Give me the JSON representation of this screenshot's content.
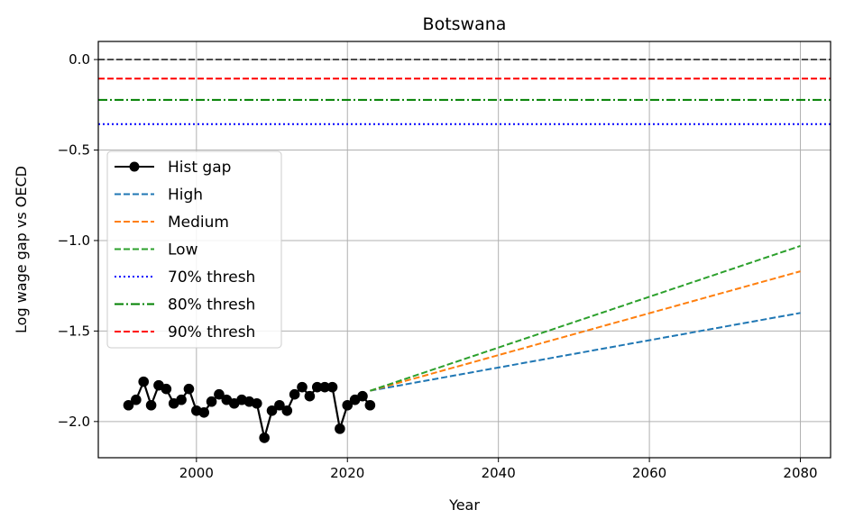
{
  "chart_data": {
    "type": "line",
    "title": "Botswana",
    "xlabel": "Year",
    "ylabel": "Log wage gap vs OECD",
    "xlim": [
      1987,
      2084
    ],
    "ylim": [
      -2.2,
      0.1
    ],
    "xticks": [
      2000,
      2020,
      2040,
      2060,
      2080
    ],
    "xtick_labels": [
      "2000",
      "2020",
      "2040",
      "2060",
      "2080"
    ],
    "yticks": [
      0.0,
      -0.5,
      -1.0,
      -1.5,
      -2.0
    ],
    "ytick_labels": [
      "0.0",
      "−0.5",
      "−1.0",
      "−1.5",
      "−2.0"
    ],
    "grid": true,
    "legend_position": "center-left",
    "hlines": [
      {
        "y": 0.0,
        "color": "#000000",
        "style": "dashed",
        "in_legend": false
      },
      {
        "y": -0.1054,
        "color": "#ff0000",
        "style": "dashed",
        "in_legend": true
      },
      {
        "y": -0.2231,
        "color": "#008000",
        "style": "dashdot",
        "in_legend": true
      },
      {
        "y": -0.3567,
        "color": "#0000ff",
        "style": "dotted",
        "in_legend": true
      }
    ],
    "series": [
      {
        "name": "Hist gap",
        "color": "#000000",
        "style": "solid-marker",
        "x": [
          1991,
          1992,
          1993,
          1994,
          1995,
          1996,
          1997,
          1998,
          1999,
          2000,
          2001,
          2002,
          2003,
          2004,
          2005,
          2006,
          2007,
          2008,
          2009,
          2010,
          2011,
          2012,
          2013,
          2014,
          2015,
          2016,
          2017,
          2018,
          2019,
          2020,
          2021,
          2022,
          2023
        ],
        "y": [
          -1.91,
          -1.88,
          -1.78,
          -1.91,
          -1.8,
          -1.82,
          -1.9,
          -1.88,
          -1.82,
          -1.94,
          -1.95,
          -1.89,
          -1.85,
          -1.88,
          -1.9,
          -1.88,
          -1.89,
          -1.9,
          -2.09,
          -1.94,
          -1.91,
          -1.94,
          -1.85,
          -1.81,
          -1.86,
          -1.81,
          -1.81,
          -1.81,
          -2.04,
          -1.91,
          -1.88,
          -1.86,
          -1.91
        ]
      },
      {
        "name": "High",
        "color": "#1f77b4",
        "style": "dashed",
        "x": [
          2023,
          2080
        ],
        "y": [
          -1.83,
          -1.4
        ]
      },
      {
        "name": "Medium",
        "color": "#ff7f0e",
        "style": "dashed",
        "x": [
          2023,
          2080
        ],
        "y": [
          -1.83,
          -1.17
        ]
      },
      {
        "name": "Low",
        "color": "#2ca02c",
        "style": "dashed",
        "x": [
          2023,
          2080
        ],
        "y": [
          -1.83,
          -1.03
        ]
      },
      {
        "name": "70% thresh",
        "color": "#0000ff",
        "style": "dotted"
      },
      {
        "name": "80% thresh",
        "color": "#008000",
        "style": "dashdot"
      },
      {
        "name": "90% thresh",
        "color": "#ff0000",
        "style": "dashed"
      }
    ]
  }
}
